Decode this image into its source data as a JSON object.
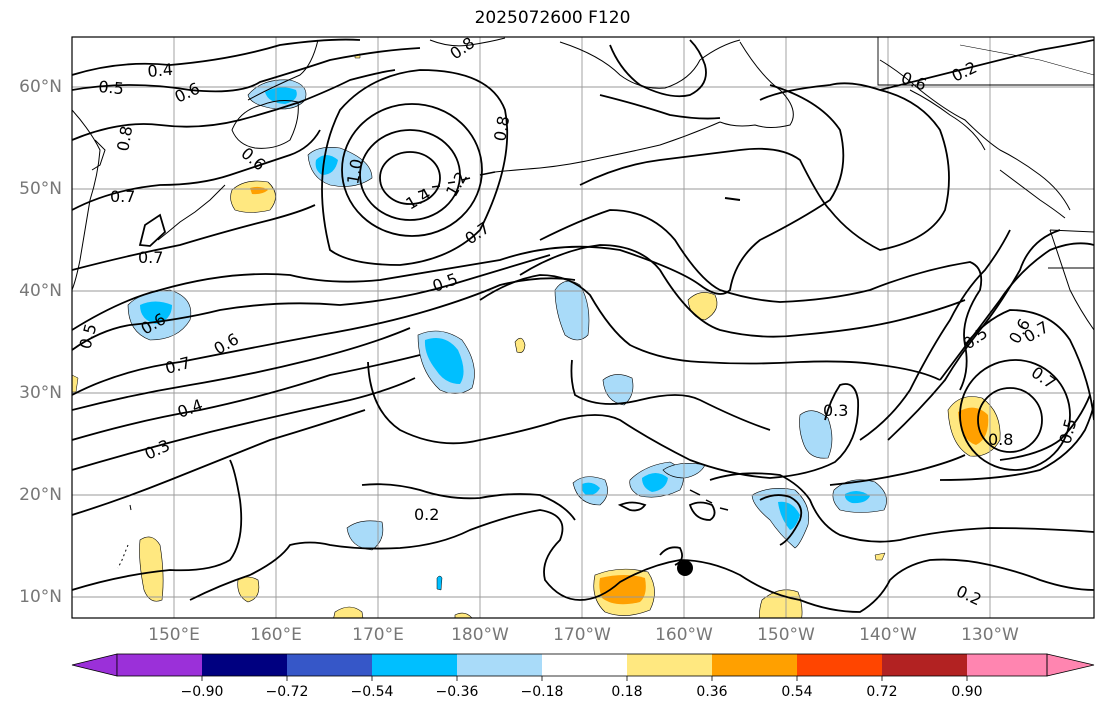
{
  "title": "2025072600 F120",
  "lat_labels": [
    "60°N",
    "50°N",
    "40°N",
    "30°N",
    "20°N",
    "10°N"
  ],
  "lon_labels": [
    "150°E",
    "160°E",
    "170°E",
    "180°W",
    "170°W",
    "160°W",
    "150°W",
    "140°W",
    "130°W"
  ],
  "contour_labels": [
    "0.4",
    "0.5",
    "0.6",
    "0.8",
    "0.8",
    "0.8",
    "0.7",
    "0.7",
    "1.0",
    "1.4",
    "1.2",
    "0.7",
    "0.5",
    "0.6",
    "0.5",
    "0.6",
    "0.7",
    "0.4",
    "0.3",
    "0.2",
    "0.3",
    "0.2",
    "0.2",
    "0.5",
    "0.6",
    "0.7",
    "0.7",
    "0.8",
    "0.5",
    "0.6",
    "0.6"
  ],
  "colorbar": {
    "ticks": [
      "−0.90",
      "−0.72",
      "−0.54",
      "−0.36",
      "−0.18",
      "0.18",
      "0.36",
      "0.54",
      "0.72",
      "0.90"
    ],
    "colors": [
      "#9b30d9",
      "#000080",
      "#3657c8",
      "#00bfff",
      "#a9dbf9",
      "#ffffff",
      "#ffe880",
      "#ffa000",
      "#ff4500",
      "#b22222",
      "#ff85b0"
    ]
  },
  "marker": "typhoon-marker"
}
